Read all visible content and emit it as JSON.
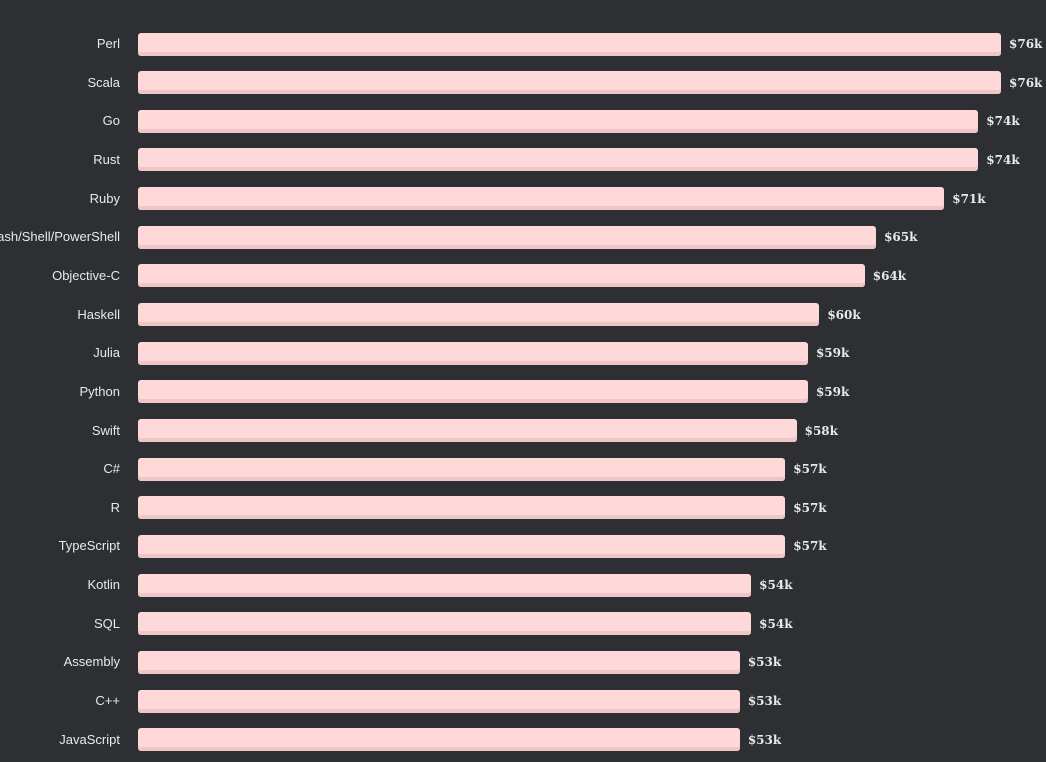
{
  "chart_data": {
    "type": "bar",
    "orientation": "horizontal",
    "title": "",
    "xlabel": "",
    "ylabel": "",
    "xlim": [
      0,
      76
    ],
    "categories": [
      "Perl",
      "Scala",
      "Go",
      "Rust",
      "Ruby",
      "Bash/Shell/PowerShell",
      "Objective-C",
      "Haskell",
      "Julia",
      "Python",
      "Swift",
      "C#",
      "R",
      "TypeScript",
      "Kotlin",
      "SQL",
      "Assembly",
      "C++",
      "JavaScript"
    ],
    "values": [
      76,
      76,
      74,
      74,
      71,
      65,
      64,
      60,
      59,
      59,
      58,
      57,
      57,
      57,
      54,
      54,
      53,
      53,
      53
    ],
    "value_labels": [
      "$76k",
      "$76k",
      "$74k",
      "$74k",
      "$71k",
      "$65k",
      "$64k",
      "$60k",
      "$59k",
      "$59k",
      "$58k",
      "$57k",
      "$57k",
      "$57k",
      "$54k",
      "$54k",
      "$53k",
      "$53k",
      "$53k"
    ],
    "colors": {
      "background": "#2d2f32",
      "bar": "#ffd9da",
      "bar_shade": "#efc6c7",
      "text": "#e8e9ea"
    }
  }
}
